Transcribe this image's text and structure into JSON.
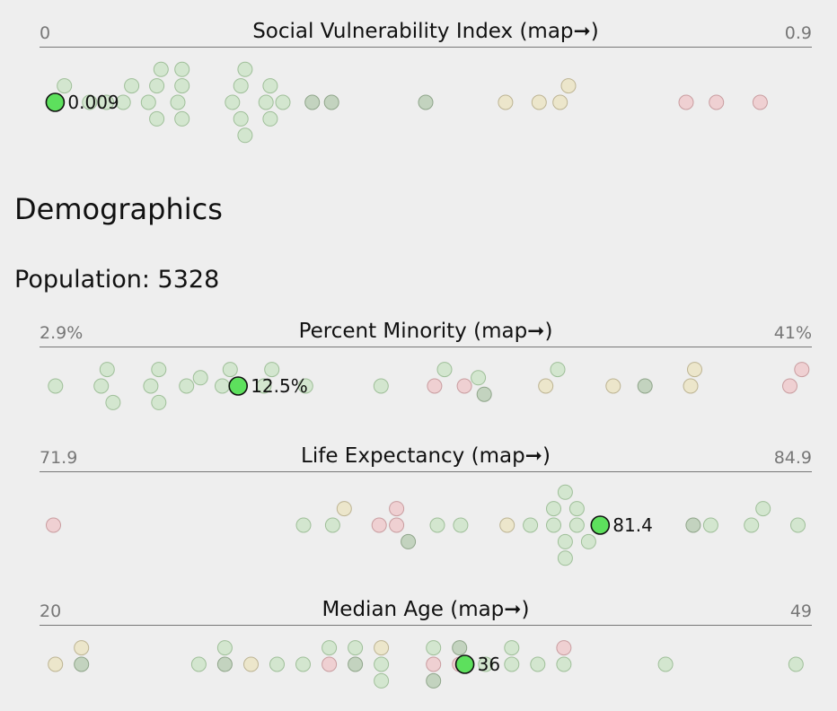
{
  "section_heading": "Demographics",
  "population_line": "Population: 5328",
  "colors": {
    "green": "#d3e6cf",
    "green_stroke": "#9fbf99",
    "dkgreen": "#c3d3bf",
    "dkgreen_stroke": "#8fa58a",
    "yellow": "#ece6cb",
    "yellow_stroke": "#bdb493",
    "red": "#efd0d2",
    "red_stroke": "#c99da0",
    "highlight": "#5de05d",
    "highlight_stroke": "#111111"
  },
  "chart_data": [
    {
      "type": "scatter",
      "title": "Social Vulnerability Index (map➞)",
      "min_label": "0",
      "max_label": "0.9",
      "xlim": [
        0,
        0.9
      ],
      "highlight": {
        "value": 0.009,
        "label": "0.009"
      },
      "points": [
        {
          "x": 0.009,
          "c": "green"
        },
        {
          "x": 0.02,
          "c": "green"
        },
        {
          "x": 0.05,
          "c": "green"
        },
        {
          "x": 0.07,
          "c": "green"
        },
        {
          "x": 0.09,
          "c": "green"
        },
        {
          "x": 0.1,
          "c": "green"
        },
        {
          "x": 0.12,
          "c": "green"
        },
        {
          "x": 0.13,
          "c": "green"
        },
        {
          "x": 0.13,
          "c": "green"
        },
        {
          "x": 0.135,
          "c": "green"
        },
        {
          "x": 0.155,
          "c": "green"
        },
        {
          "x": 0.16,
          "c": "green"
        },
        {
          "x": 0.16,
          "c": "green"
        },
        {
          "x": 0.16,
          "c": "green"
        },
        {
          "x": 0.22,
          "c": "green"
        },
        {
          "x": 0.23,
          "c": "green"
        },
        {
          "x": 0.23,
          "c": "green"
        },
        {
          "x": 0.235,
          "c": "green"
        },
        {
          "x": 0.235,
          "c": "green"
        },
        {
          "x": 0.26,
          "c": "green"
        },
        {
          "x": 0.265,
          "c": "green"
        },
        {
          "x": 0.265,
          "c": "green"
        },
        {
          "x": 0.28,
          "c": "green"
        },
        {
          "x": 0.315,
          "c": "dkgreen"
        },
        {
          "x": 0.338,
          "c": "dkgreen"
        },
        {
          "x": 0.45,
          "c": "dkgreen"
        },
        {
          "x": 0.545,
          "c": "yellow"
        },
        {
          "x": 0.585,
          "c": "yellow"
        },
        {
          "x": 0.61,
          "c": "yellow"
        },
        {
          "x": 0.62,
          "c": "yellow"
        },
        {
          "x": 0.76,
          "c": "red"
        },
        {
          "x": 0.796,
          "c": "red"
        },
        {
          "x": 0.848,
          "c": "red"
        }
      ]
    },
    {
      "type": "scatter",
      "title": "Percent Minority (map➞)",
      "min_label": "2.9%",
      "max_label": "41%",
      "xlim": [
        2.9,
        41
      ],
      "highlight": {
        "value": 12.5,
        "label": "12.5%"
      },
      "points": [
        {
          "x": 3.3,
          "c": "green"
        },
        {
          "x": 5.6,
          "c": "green"
        },
        {
          "x": 5.9,
          "c": "green"
        },
        {
          "x": 6.2,
          "c": "green"
        },
        {
          "x": 8.1,
          "c": "green"
        },
        {
          "x": 8.5,
          "c": "green"
        },
        {
          "x": 8.5,
          "c": "green"
        },
        {
          "x": 9.9,
          "c": "green"
        },
        {
          "x": 10.6,
          "c": "green"
        },
        {
          "x": 11.7,
          "c": "green"
        },
        {
          "x": 12.1,
          "c": "green"
        },
        {
          "x": 13.8,
          "c": "green"
        },
        {
          "x": 14.2,
          "c": "green"
        },
        {
          "x": 15.9,
          "c": "green"
        },
        {
          "x": 19.7,
          "c": "green"
        },
        {
          "x": 22.4,
          "c": "red"
        },
        {
          "x": 22.9,
          "c": "green"
        },
        {
          "x": 23.9,
          "c": "red"
        },
        {
          "x": 24.6,
          "c": "green"
        },
        {
          "x": 24.9,
          "c": "dkgreen"
        },
        {
          "x": 28.0,
          "c": "yellow"
        },
        {
          "x": 28.6,
          "c": "green"
        },
        {
          "x": 31.4,
          "c": "yellow"
        },
        {
          "x": 33.0,
          "c": "dkgreen"
        },
        {
          "x": 35.3,
          "c": "yellow"
        },
        {
          "x": 35.5,
          "c": "yellow"
        },
        {
          "x": 40.3,
          "c": "red"
        },
        {
          "x": 40.9,
          "c": "red"
        }
      ]
    },
    {
      "type": "scatter",
      "title": "Life Expectancy (map➞)",
      "min_label": "71.9",
      "max_label": "84.9",
      "xlim": [
        71.9,
        84.9
      ],
      "highlight": {
        "value": 81.4,
        "label": "81.4"
      },
      "points": [
        {
          "x": 72.0,
          "c": "red"
        },
        {
          "x": 76.3,
          "c": "green"
        },
        {
          "x": 76.8,
          "c": "green"
        },
        {
          "x": 77.0,
          "c": "yellow"
        },
        {
          "x": 77.6,
          "c": "red"
        },
        {
          "x": 77.9,
          "c": "red"
        },
        {
          "x": 77.9,
          "c": "red"
        },
        {
          "x": 78.1,
          "c": "dkgreen"
        },
        {
          "x": 78.6,
          "c": "green"
        },
        {
          "x": 79.0,
          "c": "green"
        },
        {
          "x": 79.8,
          "c": "yellow"
        },
        {
          "x": 80.2,
          "c": "green"
        },
        {
          "x": 80.6,
          "c": "green"
        },
        {
          "x": 80.6,
          "c": "green"
        },
        {
          "x": 80.8,
          "c": "green"
        },
        {
          "x": 80.8,
          "c": "green"
        },
        {
          "x": 80.8,
          "c": "green"
        },
        {
          "x": 81.0,
          "c": "green"
        },
        {
          "x": 81.0,
          "c": "green"
        },
        {
          "x": 81.2,
          "c": "green"
        },
        {
          "x": 83.0,
          "c": "dkgreen"
        },
        {
          "x": 83.3,
          "c": "green"
        },
        {
          "x": 84.0,
          "c": "green"
        },
        {
          "x": 84.2,
          "c": "green"
        },
        {
          "x": 84.8,
          "c": "green"
        }
      ]
    },
    {
      "type": "scatter",
      "title": "Median Age (map➞)",
      "min_label": "20",
      "max_label": "49",
      "xlim": [
        20,
        49
      ],
      "highlight": {
        "value": 36,
        "label": "36"
      },
      "points": [
        {
          "x": 20.3,
          "c": "yellow"
        },
        {
          "x": 21.3,
          "c": "dkgreen"
        },
        {
          "x": 21.3,
          "c": "yellow"
        },
        {
          "x": 25.8,
          "c": "green"
        },
        {
          "x": 26.8,
          "c": "dkgreen"
        },
        {
          "x": 26.8,
          "c": "green"
        },
        {
          "x": 27.8,
          "c": "yellow"
        },
        {
          "x": 28.8,
          "c": "green"
        },
        {
          "x": 29.8,
          "c": "green"
        },
        {
          "x": 30.8,
          "c": "red"
        },
        {
          "x": 30.8,
          "c": "green"
        },
        {
          "x": 31.8,
          "c": "dkgreen"
        },
        {
          "x": 31.8,
          "c": "green"
        },
        {
          "x": 32.8,
          "c": "green"
        },
        {
          "x": 32.8,
          "c": "yellow"
        },
        {
          "x": 32.8,
          "c": "green"
        },
        {
          "x": 34.8,
          "c": "red"
        },
        {
          "x": 34.8,
          "c": "green"
        },
        {
          "x": 34.8,
          "c": "dkgreen"
        },
        {
          "x": 35.8,
          "c": "red"
        },
        {
          "x": 35.8,
          "c": "dkgreen"
        },
        {
          "x": 36.8,
          "c": "green"
        },
        {
          "x": 37.8,
          "c": "green"
        },
        {
          "x": 37.8,
          "c": "green"
        },
        {
          "x": 38.8,
          "c": "green"
        },
        {
          "x": 39.8,
          "c": "green"
        },
        {
          "x": 39.8,
          "c": "red"
        },
        {
          "x": 43.7,
          "c": "green"
        },
        {
          "x": 48.7,
          "c": "green"
        }
      ]
    }
  ]
}
